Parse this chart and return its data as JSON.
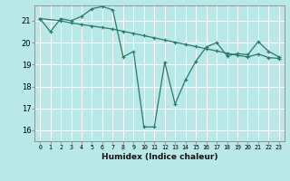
{
  "xlabel": "Humidex (Indice chaleur)",
  "bg_color": "#b8e8e8",
  "grid_color": "#ffffff",
  "line_color": "#2a7a6a",
  "xlim": [
    -0.5,
    23.5
  ],
  "ylim": [
    15.5,
    21.7
  ],
  "yticks": [
    16,
    17,
    18,
    19,
    20,
    21
  ],
  "xticks": [
    0,
    1,
    2,
    3,
    4,
    5,
    6,
    7,
    8,
    9,
    10,
    11,
    12,
    13,
    14,
    15,
    16,
    17,
    18,
    19,
    20,
    21,
    22,
    23
  ],
  "line1_x": [
    0,
    1,
    2,
    3,
    4,
    5,
    6,
    7,
    8,
    9,
    10,
    11,
    12,
    13,
    14,
    15,
    16,
    17,
    18,
    19,
    20,
    21,
    22,
    23
  ],
  "line1_y": [
    21.1,
    20.5,
    21.1,
    21.0,
    21.2,
    21.55,
    21.65,
    21.5,
    19.35,
    19.6,
    16.15,
    16.15,
    19.1,
    17.2,
    18.3,
    19.15,
    19.8,
    20.0,
    19.4,
    19.5,
    19.45,
    20.05,
    19.6,
    19.35
  ],
  "line2_x": [
    0,
    2,
    3,
    4,
    5,
    6,
    7,
    8,
    9,
    10,
    11,
    12,
    13,
    14,
    15,
    16,
    17,
    18,
    19,
    20,
    21,
    22,
    23
  ],
  "line2_y": [
    21.1,
    21.0,
    20.9,
    20.83,
    20.76,
    20.69,
    20.62,
    20.52,
    20.42,
    20.32,
    20.22,
    20.12,
    20.02,
    19.92,
    19.82,
    19.72,
    19.62,
    19.52,
    19.42,
    19.35,
    19.48,
    19.32,
    19.28
  ]
}
